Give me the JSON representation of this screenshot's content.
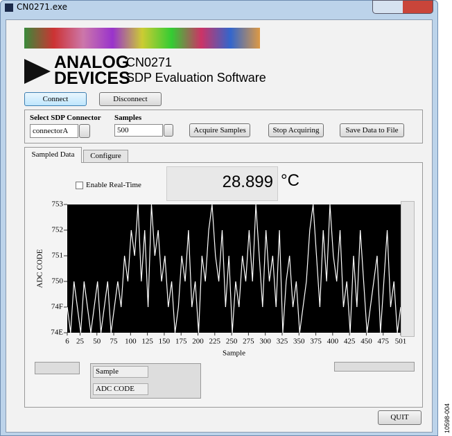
{
  "window": {
    "title": "CN0271.exe"
  },
  "header": {
    "logo_line1": "ANALOG",
    "logo_line2": "DEVICES",
    "product": "CN0271",
    "subtitle": "SDP Evaluation Software"
  },
  "buttons": {
    "connect": "Connect",
    "disconnect": "Disconnect",
    "acquire": "Acquire Samples",
    "stop": "Stop Acquiring",
    "save": "Save Data to File",
    "quit": "QUIT"
  },
  "controls": {
    "connector_label": "Select SDP Connector",
    "connector_value": "connectorA",
    "samples_label": "Samples",
    "samples_value": "500",
    "realtime": "Enable Real-Time"
  },
  "tabs": [
    "Sampled Data",
    "Configure"
  ],
  "temperature": {
    "value": "28.899",
    "unit": "°C"
  },
  "legend_panel": [
    "Sample",
    "ADC CODE"
  ],
  "figure_id": "10598-004",
  "chart_data": {
    "type": "line",
    "xlabel": "Sample",
    "ylabel": "ADC CODE",
    "color": "#ffffff",
    "background": "#000000",
    "xlim": [
      6,
      501
    ],
    "ylim": [
      748,
      753
    ],
    "xticks": [
      6,
      25,
      50,
      75,
      100,
      125,
      150,
      175,
      200,
      225,
      250,
      275,
      300,
      325,
      350,
      375,
      400,
      425,
      450,
      475,
      501
    ],
    "yticks": [
      {
        "value": 748,
        "label": "74E"
      },
      {
        "value": 749,
        "label": "74F"
      },
      750,
      751,
      752,
      753
    ],
    "x": [
      6,
      11,
      16,
      21,
      26,
      31,
      36,
      41,
      46,
      51,
      56,
      61,
      66,
      71,
      76,
      81,
      86,
      91,
      96,
      101,
      106,
      111,
      116,
      121,
      126,
      131,
      136,
      141,
      146,
      151,
      156,
      161,
      166,
      171,
      176,
      181,
      186,
      191,
      196,
      201,
      206,
      211,
      216,
      221,
      226,
      231,
      236,
      241,
      246,
      251,
      256,
      261,
      266,
      271,
      276,
      281,
      286,
      291,
      296,
      301,
      306,
      311,
      316,
      321,
      326,
      331,
      336,
      341,
      346,
      351,
      356,
      361,
      366,
      371,
      376,
      381,
      386,
      391,
      396,
      401,
      406,
      411,
      416,
      421,
      426,
      431,
      436,
      441,
      446,
      451,
      456,
      461,
      466,
      471,
      476,
      481,
      486,
      491,
      496,
      501
    ],
    "values": [
      749,
      748,
      750,
      749,
      748,
      750,
      749,
      748,
      749,
      750,
      748,
      749,
      750,
      748,
      749,
      750,
      749,
      751,
      750,
      752,
      751,
      753,
      750,
      752,
      749,
      753,
      751,
      752,
      750,
      751,
      749,
      750,
      748,
      749,
      751,
      750,
      752,
      749,
      750,
      748,
      751,
      750,
      752,
      753,
      751,
      750,
      752,
      749,
      751,
      748,
      750,
      749,
      751,
      750,
      752,
      750,
      753,
      751,
      749,
      752,
      750,
      751,
      749,
      752,
      748,
      750,
      751,
      749,
      750,
      748,
      749,
      750,
      752,
      753,
      751,
      749,
      752,
      750,
      753,
      751,
      750,
      752,
      749,
      750,
      748,
      751,
      749,
      752,
      750,
      748,
      749,
      750,
      751,
      748,
      750,
      752,
      749,
      750,
      748,
      749
    ]
  }
}
